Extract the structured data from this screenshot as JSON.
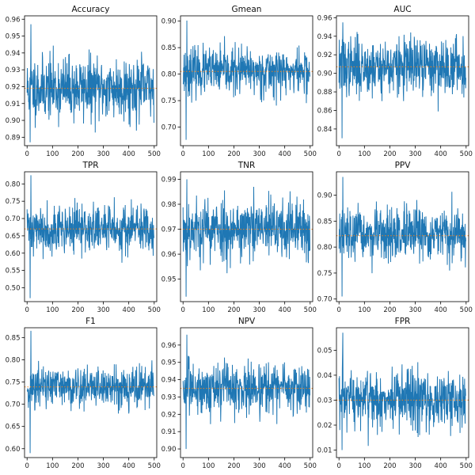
{
  "figure": {
    "line_color": "#1f77b4",
    "mean_line_color": "#ff7f0e"
  },
  "chart_data": [
    {
      "type": "line",
      "title": "Accuracy",
      "xlabel": "",
      "ylabel": "",
      "xlim": [
        -10,
        510
      ],
      "ylim": [
        0.885,
        0.962
      ],
      "x_ticks": [
        0,
        100,
        200,
        300,
        400,
        500
      ],
      "x_tick_labels": [
        "0",
        "100",
        "200",
        "300",
        "400",
        "500"
      ],
      "y_ticks": [
        0.89,
        0.9,
        0.91,
        0.92,
        0.93,
        0.94,
        0.95,
        0.96
      ],
      "y_tick_labels": [
        "0.89",
        "0.90",
        "0.91",
        "0.92",
        "0.93",
        "0.94",
        "0.95",
        "0.96"
      ],
      "mean": 0.919,
      "amplitude": 0.015,
      "min": 0.887,
      "max": 0.957,
      "seed": 11,
      "n": 500,
      "grid": false
    },
    {
      "type": "line",
      "title": "Gmean",
      "xlabel": "",
      "ylabel": "",
      "xlim": [
        -10,
        510
      ],
      "ylim": [
        0.665,
        0.91
      ],
      "x_ticks": [
        0,
        100,
        200,
        300,
        400,
        500
      ],
      "x_tick_labels": [
        "0",
        "100",
        "200",
        "300",
        "400",
        "500"
      ],
      "y_ticks": [
        0.7,
        0.75,
        0.8,
        0.85,
        0.9
      ],
      "y_tick_labels": [
        "0.70",
        "0.75",
        "0.80",
        "0.85",
        "0.90"
      ],
      "mean": 0.805,
      "amplitude": 0.035,
      "min": 0.676,
      "max": 0.901,
      "seed": 23,
      "n": 500,
      "grid": false
    },
    {
      "type": "line",
      "title": "AUC",
      "xlabel": "",
      "ylabel": "",
      "xlim": [
        -10,
        510
      ],
      "ylim": [
        0.822,
        0.962
      ],
      "x_ticks": [
        0,
        100,
        200,
        300,
        400,
        500
      ],
      "x_tick_labels": [
        "0",
        "100",
        "200",
        "300",
        "400",
        "500"
      ],
      "y_ticks": [
        0.84,
        0.86,
        0.88,
        0.9,
        0.92,
        0.94,
        0.96
      ],
      "y_tick_labels": [
        "0.84",
        "0.86",
        "0.88",
        "0.90",
        "0.92",
        "0.94",
        "0.96"
      ],
      "mean": 0.907,
      "amplitude": 0.025,
      "min": 0.83,
      "max": 0.955,
      "seed": 37,
      "n": 500,
      "grid": false
    },
    {
      "type": "line",
      "title": "TPR",
      "xlabel": "",
      "ylabel": "",
      "xlim": [
        -10,
        510
      ],
      "ylim": [
        0.46,
        0.835
      ],
      "x_ticks": [
        0,
        100,
        200,
        300,
        400,
        500
      ],
      "x_tick_labels": [
        "0",
        "100",
        "200",
        "300",
        "400",
        "500"
      ],
      "y_ticks": [
        0.5,
        0.55,
        0.6,
        0.65,
        0.7,
        0.75,
        0.8
      ],
      "y_tick_labels": [
        "0.50",
        "0.55",
        "0.60",
        "0.65",
        "0.70",
        "0.75",
        "0.80"
      ],
      "mean": 0.67,
      "amplitude": 0.055,
      "min": 0.47,
      "max": 0.825,
      "seed": 41,
      "n": 500,
      "grid": false
    },
    {
      "type": "line",
      "title": "TNR",
      "xlabel": "",
      "ylabel": "",
      "xlim": [
        -10,
        510
      ],
      "ylim": [
        0.941,
        0.993
      ],
      "x_ticks": [
        0,
        100,
        200,
        300,
        400,
        500
      ],
      "x_tick_labels": [
        "0",
        "100",
        "200",
        "300",
        "400",
        "500"
      ],
      "y_ticks": [
        0.95,
        0.96,
        0.97,
        0.98,
        0.99
      ],
      "y_tick_labels": [
        "0.95",
        "0.96",
        "0.97",
        "0.98",
        "0.99"
      ],
      "mean": 0.97,
      "amplitude": 0.01,
      "min": 0.943,
      "max": 0.99,
      "seed": 53,
      "n": 500,
      "grid": false
    },
    {
      "type": "line",
      "title": "PPV",
      "xlabel": "",
      "ylabel": "",
      "xlim": [
        -10,
        510
      ],
      "ylim": [
        0.695,
        0.945
      ],
      "x_ticks": [
        0,
        100,
        200,
        300,
        400,
        500
      ],
      "x_tick_labels": [
        "0",
        "100",
        "200",
        "300",
        "400",
        "500"
      ],
      "y_ticks": [
        0.7,
        0.75,
        0.8,
        0.85,
        0.9
      ],
      "y_tick_labels": [
        "0.70",
        "0.75",
        "0.80",
        "0.85",
        "0.90"
      ],
      "mean": 0.822,
      "amplitude": 0.04,
      "min": 0.705,
      "max": 0.935,
      "seed": 67,
      "n": 500,
      "grid": false
    },
    {
      "type": "line",
      "title": "F1",
      "xlabel": "",
      "ylabel": "",
      "xlim": [
        -10,
        510
      ],
      "ylim": [
        0.58,
        0.872
      ],
      "x_ticks": [
        0,
        100,
        200,
        300,
        400,
        500
      ],
      "x_tick_labels": [
        "0",
        "100",
        "200",
        "300",
        "400",
        "500"
      ],
      "y_ticks": [
        0.6,
        0.65,
        0.7,
        0.75,
        0.8,
        0.85
      ],
      "y_tick_labels": [
        "0.60",
        "0.65",
        "0.70",
        "0.75",
        "0.80",
        "0.85"
      ],
      "mean": 0.739,
      "amplitude": 0.04,
      "min": 0.59,
      "max": 0.865,
      "seed": 71,
      "n": 500,
      "grid": false
    },
    {
      "type": "line",
      "title": "NPV",
      "xlabel": "",
      "ylabel": "",
      "xlim": [
        -10,
        510
      ],
      "ylim": [
        0.895,
        0.97
      ],
      "x_ticks": [
        0,
        100,
        200,
        300,
        400,
        500
      ],
      "x_tick_labels": [
        "0",
        "100",
        "200",
        "300",
        "400",
        "500"
      ],
      "y_ticks": [
        0.9,
        0.91,
        0.92,
        0.93,
        0.94,
        0.95,
        0.96
      ],
      "y_tick_labels": [
        "0.90",
        "0.91",
        "0.92",
        "0.93",
        "0.94",
        "0.95",
        "0.96"
      ],
      "mean": 0.935,
      "amplitude": 0.012,
      "min": 0.9,
      "max": 0.966,
      "seed": 83,
      "n": 500,
      "grid": false
    },
    {
      "type": "line",
      "title": "FPR",
      "xlabel": "",
      "ylabel": "",
      "xlim": [
        -10,
        510
      ],
      "ylim": [
        0.007,
        0.059
      ],
      "x_ticks": [
        0,
        100,
        200,
        300,
        400,
        500
      ],
      "x_tick_labels": [
        "0",
        "100",
        "200",
        "300",
        "400",
        "500"
      ],
      "y_ticks": [
        0.01,
        0.02,
        0.03,
        0.04,
        0.05
      ],
      "y_tick_labels": [
        "0.01",
        "0.02",
        "0.03",
        "0.04",
        "0.05"
      ],
      "mean": 0.03,
      "amplitude": 0.01,
      "min": 0.01,
      "max": 0.057,
      "seed": 97,
      "n": 500,
      "grid": false
    }
  ]
}
